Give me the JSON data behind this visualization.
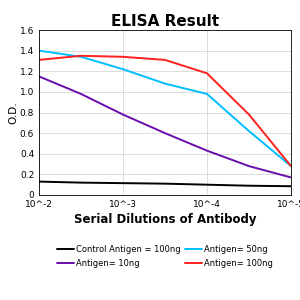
{
  "title": "ELISA Result",
  "ylabel": "O.D.",
  "xlabel": "Serial Dilutions of Antibody",
  "xlim": [
    -2,
    -5
  ],
  "ylim": [
    0,
    1.6
  ],
  "yticks": [
    0,
    0.2,
    0.4,
    0.6,
    0.8,
    1.0,
    1.2,
    1.4,
    1.6
  ],
  "xtick_positions": [
    -2,
    -3,
    -4,
    -5
  ],
  "xtick_labels": [
    "10^-2",
    "10^-3",
    "10^-4",
    "10^-5"
  ],
  "lines": [
    {
      "label": "Control Antigen = 100ng",
      "color": "#000000",
      "x": [
        -2,
        -2.5,
        -3,
        -3.5,
        -4,
        -4.5,
        -5
      ],
      "y": [
        0.13,
        0.12,
        0.115,
        0.11,
        0.1,
        0.09,
        0.085
      ]
    },
    {
      "label": "Antigen= 10ng",
      "color": "#6A0DAD",
      "x": [
        -2,
        -2.5,
        -3,
        -3.5,
        -4,
        -4.5,
        -5
      ],
      "y": [
        1.15,
        0.98,
        0.78,
        0.6,
        0.43,
        0.28,
        0.17
      ]
    },
    {
      "label": "Antigen= 50ng",
      "color": "#00BFFF",
      "x": [
        -2,
        -2.5,
        -3,
        -3.5,
        -4,
        -4.5,
        -5
      ],
      "y": [
        1.4,
        1.34,
        1.22,
        1.08,
        0.98,
        0.62,
        0.28
      ]
    },
    {
      "label": "Antigen= 100ng",
      "color": "#FF2020",
      "x": [
        -2,
        -2.5,
        -3,
        -3.5,
        -4,
        -4.5,
        -5
      ],
      "y": [
        1.31,
        1.35,
        1.34,
        1.31,
        1.18,
        0.78,
        0.28
      ]
    }
  ],
  "legend_fontsize": 6.0,
  "title_fontsize": 11,
  "ylabel_fontsize": 7.5,
  "xlabel_fontsize": 8.5,
  "tick_fontsize": 6.5,
  "linewidth": 1.4
}
